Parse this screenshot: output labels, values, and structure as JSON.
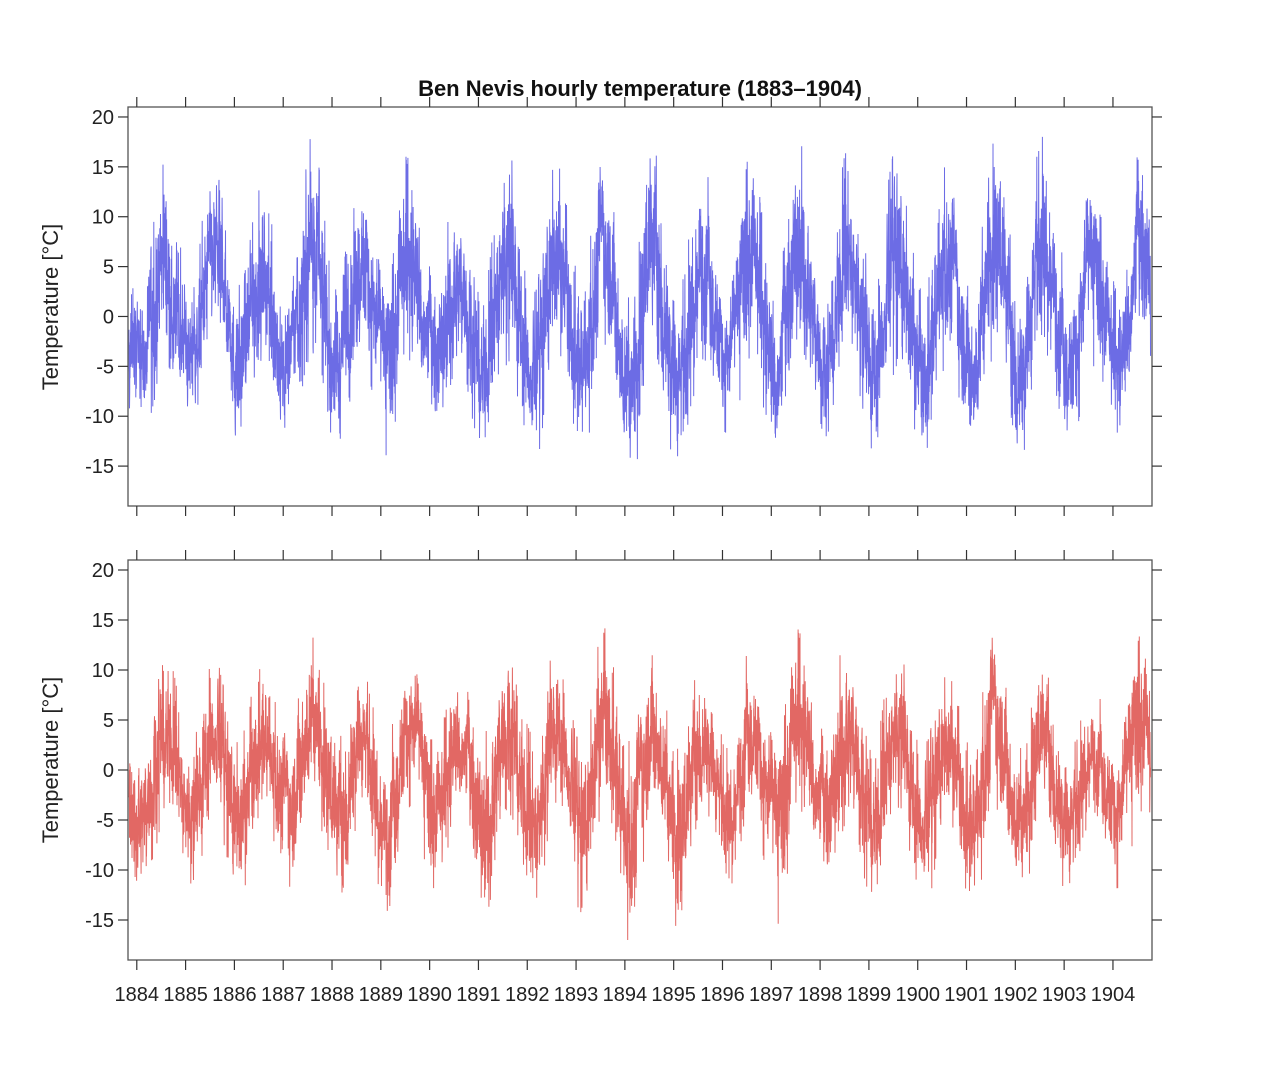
{
  "chart_data": [
    {
      "type": "line",
      "title": "Ben Nevis hourly temperature (1883–1904)",
      "xlabel": "",
      "ylabel": "Temperature [°C]",
      "xlim": [
        1883.82,
        1904.8
      ],
      "ylim": [
        -19,
        21
      ],
      "x_ticks": [
        "1884",
        "1885",
        "1886",
        "1887",
        "1888",
        "1889",
        "1890",
        "1891",
        "1892",
        "1893",
        "1894",
        "1895",
        "1896",
        "1897",
        "1898",
        "1899",
        "1900",
        "1901",
        "1902",
        "1903",
        "1904"
      ],
      "y_ticks": [
        "20",
        "15",
        "10",
        "5",
        "0",
        "-5",
        "-10",
        "-15"
      ],
      "grid": false,
      "color": "#6464e4",
      "years": [
        1884,
        1885,
        1886,
        1887,
        1888,
        1889,
        1890,
        1891,
        1892,
        1893,
        1894,
        1895,
        1896,
        1897,
        1898,
        1899,
        1900,
        1901,
        1902,
        1903,
        1904
      ],
      "annual_summer_max": [
        15.5,
        15.5,
        13,
        19,
        16,
        16.5,
        13,
        18.2,
        16.5,
        15.5,
        17.5,
        16.5,
        16,
        17.8,
        16.5,
        17.5,
        15,
        17.5,
        19,
        13,
        16.5
      ],
      "annual_winter_min": [
        -12,
        -11.5,
        -13,
        -13,
        -13.5,
        -14,
        -12.5,
        -14.5,
        -15.5,
        -14,
        -17.5,
        -17,
        -12,
        -15.5,
        -12,
        -14,
        -14.5,
        -14,
        -14,
        -13,
        -12
      ]
    },
    {
      "type": "line",
      "title": "",
      "xlabel": "",
      "ylabel": "Temperature [°C]",
      "xlim": [
        1883.82,
        1904.8
      ],
      "ylim": [
        -19,
        21
      ],
      "x_ticks": [
        "1884",
        "1885",
        "1886",
        "1887",
        "1888",
        "1889",
        "1890",
        "1891",
        "1892",
        "1893",
        "1894",
        "1895",
        "1896",
        "1897",
        "1898",
        "1899",
        "1900",
        "1901",
        "1902",
        "1903",
        "1904"
      ],
      "y_ticks": [
        "20",
        "15",
        "10",
        "5",
        "0",
        "-5",
        "-10",
        "-15"
      ],
      "grid": false,
      "color": "#e0605c",
      "years": [
        1884,
        1885,
        1886,
        1887,
        1888,
        1889,
        1890,
        1891,
        1892,
        1893,
        1894,
        1895,
        1896,
        1897,
        1898,
        1899,
        1900,
        1901,
        1902,
        1903,
        1904
      ],
      "annual_summer_max": [
        12.5,
        11.5,
        10.5,
        14,
        11,
        12,
        10,
        14,
        12,
        14.3,
        12,
        11,
        12,
        14.3,
        14.3,
        13,
        10.5,
        13.3,
        10.5,
        8.5,
        13.5
      ],
      "annual_winter_min": [
        -11.5,
        -11.5,
        -13,
        -12.5,
        -13.5,
        -14.5,
        -12.5,
        -15,
        -15.5,
        -14.5,
        -17.5,
        -17,
        -12.5,
        -15.5,
        -12.5,
        -14,
        -14.5,
        -14,
        -13.5,
        -13.5,
        -12
      ]
    }
  ]
}
